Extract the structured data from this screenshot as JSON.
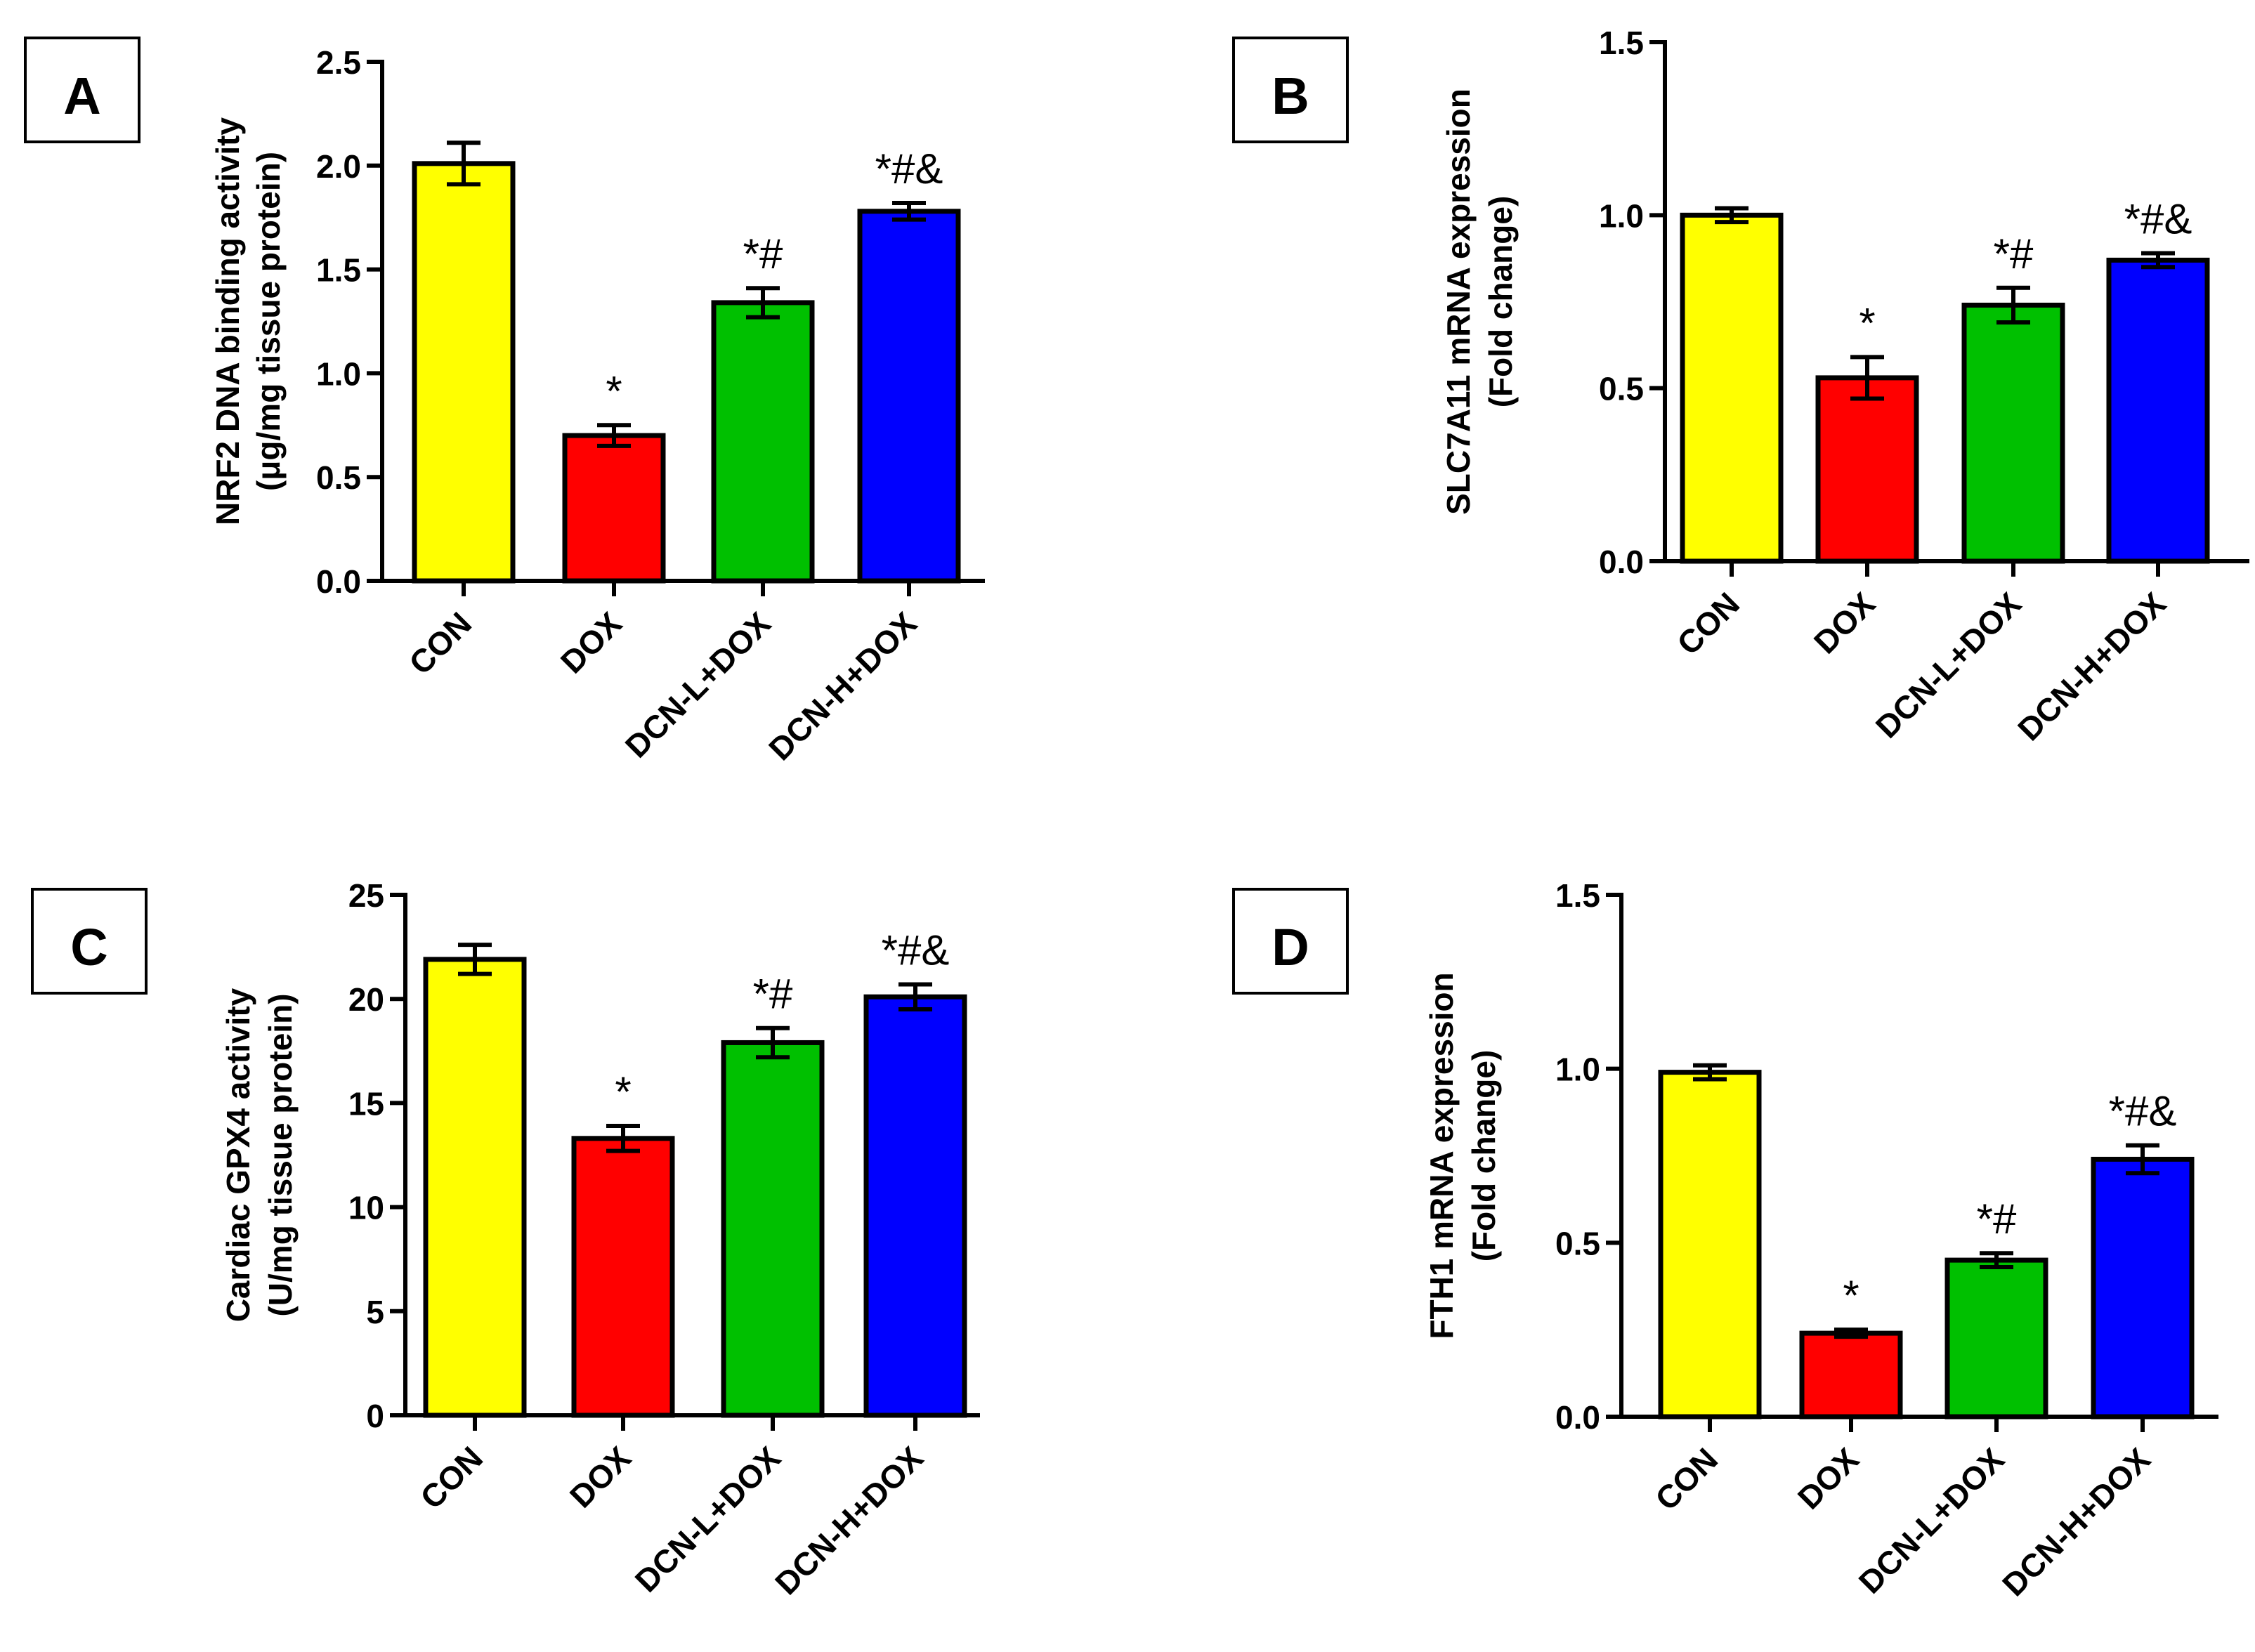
{
  "colors": {
    "con": "#ffff00",
    "dox": "#ff0000",
    "dcn_l": "#00c000",
    "dcn_h": "#0000ff",
    "axis": "#000000"
  },
  "chart_data": [
    {
      "panel": "A",
      "type": "bar",
      "categories": [
        "CON",
        "DOX",
        "DCN-L+DOX",
        "DCN-H+DOX"
      ],
      "values": [
        2.01,
        0.7,
        1.34,
        1.78
      ],
      "errors": [
        0.1,
        0.05,
        0.07,
        0.04
      ],
      "annotations": [
        "",
        "*",
        "*#",
        "*#&"
      ],
      "ylabel": [
        "NRF2 DNA binding activity",
        "(μg/mg tissue protein)"
      ],
      "ylim": [
        0,
        2.5
      ],
      "yticks": [
        0.0,
        0.5,
        1.0,
        1.5,
        2.0,
        2.5
      ],
      "ytick_labels": [
        "0.0",
        "0.5",
        "1.0",
        "1.5",
        "2.0",
        "2.5"
      ]
    },
    {
      "panel": "B",
      "type": "bar",
      "categories": [
        "CON",
        "DOX",
        "DCN-L+DOX",
        "DCN-H+DOX"
      ],
      "values": [
        1.0,
        0.53,
        0.74,
        0.87
      ],
      "errors": [
        0.02,
        0.06,
        0.05,
        0.02
      ],
      "annotations": [
        "",
        "*",
        "*#",
        "*#&"
      ],
      "ylabel": [
        "SLC7A11 mRNA expression",
        "(Fold change)"
      ],
      "ylim": [
        0,
        1.5
      ],
      "yticks": [
        0.0,
        0.5,
        1.0,
        1.5
      ],
      "ytick_labels": [
        "0.0",
        "0.5",
        "1.0",
        "1.5"
      ]
    },
    {
      "panel": "C",
      "type": "bar",
      "categories": [
        "CON",
        "DOX",
        "DCN-L+DOX",
        "DCN-H+DOX"
      ],
      "values": [
        21.9,
        13.3,
        17.9,
        20.1
      ],
      "errors": [
        0.7,
        0.6,
        0.7,
        0.6
      ],
      "annotations": [
        "",
        "*",
        "*#",
        "*#&"
      ],
      "ylabel": [
        "Cardiac GPX4 activity",
        "(U/mg tissue protein)"
      ],
      "ylim": [
        0,
        25
      ],
      "yticks": [
        0,
        5,
        10,
        15,
        20,
        25
      ],
      "ytick_labels": [
        "0",
        "5",
        "10",
        "15",
        "20",
        "25"
      ]
    },
    {
      "panel": "D",
      "type": "bar",
      "categories": [
        "CON",
        "DOX",
        "DCN-L+DOX",
        "DCN-H+DOX"
      ],
      "values": [
        0.99,
        0.24,
        0.45,
        0.74
      ],
      "errors": [
        0.02,
        0.01,
        0.02,
        0.04
      ],
      "annotations": [
        "",
        "*",
        "*#",
        "*#&"
      ],
      "ylabel": [
        "FTH1 mRNA expression",
        "(Fold change)"
      ],
      "ylim": [
        0,
        1.5
      ],
      "yticks": [
        0.0,
        0.5,
        1.0,
        1.5
      ],
      "ytick_labels": [
        "0.0",
        "0.5",
        "1.0",
        "1.5"
      ]
    }
  ]
}
